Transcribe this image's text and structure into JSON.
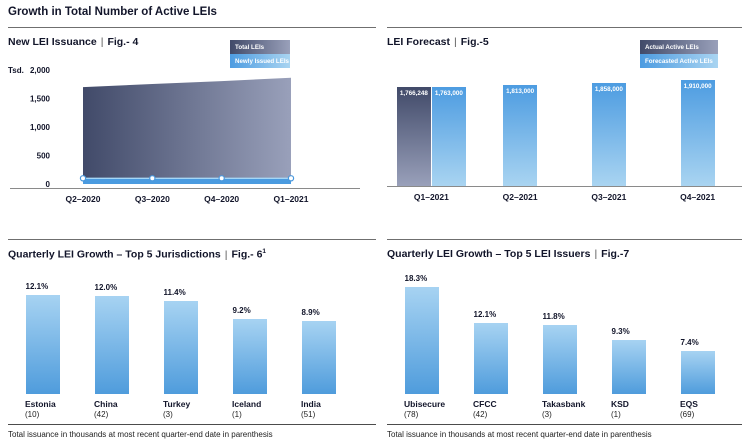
{
  "page": {
    "title": "Growth in Total Number of Active LEIs",
    "title_separator": "|"
  },
  "footnote": "Total issuance in thousands at most recent quarter-end date in parenthesis",
  "colors": {
    "dark_gradient_start": "#414a69",
    "dark_gradient_end": "#99a0ba",
    "forecast_blue_start": "#4d9ce1",
    "forecast_blue_end": "#a9d4f1",
    "growth_blue_top": "#a7d3f2",
    "growth_blue_bottom": "#4f9cdc",
    "newly_issued_strip": "#4a9be0",
    "strip_top_edge": "#a5d6f6",
    "marker_stroke": "#4a98dd",
    "axis_line": "#8a8a8a",
    "text_dark": "#12152a"
  },
  "chart_data": [
    {
      "id": "fig4",
      "type": "area",
      "title": "New LEI Issuance",
      "fig_label": "Fig.- 4",
      "unit_label": "Tsd.",
      "legend": [
        "Total LEIs",
        "Newly Issued LEIs"
      ],
      "categories": [
        "Q2–2020",
        "Q3–2020",
        "Q4–2020",
        "Q1–2021"
      ],
      "ylim": [
        0,
        2000
      ],
      "y_ticks": [
        {
          "value": 2000,
          "label": "2,000"
        },
        {
          "value": 1500,
          "label": "1,500"
        },
        {
          "value": 1000,
          "label": "1,000"
        },
        {
          "value": 500,
          "label": "500"
        },
        {
          "value": 0,
          "label": "0"
        }
      ],
      "series": [
        {
          "name": "Total LEIs",
          "unit": "thousands",
          "estimated": true,
          "values": [
            1700,
            1755,
            1805,
            1865
          ]
        },
        {
          "name": "Newly Issued LEIs",
          "unit": "thousands",
          "estimated": true,
          "values": [
            100,
            100,
            100,
            100
          ]
        }
      ]
    },
    {
      "id": "fig5",
      "type": "bar",
      "title": "LEI Forecast",
      "fig_label": "Fig.-5",
      "legend": [
        "Actual Active LEIs",
        "Forecasted Active LEIs"
      ],
      "categories": [
        "Q1–2021",
        "Q2–2021",
        "Q3–2021",
        "Q4–2021"
      ],
      "series": [
        {
          "name": "Actual Active LEIs",
          "style": "dark",
          "values": [
            1766248,
            null,
            null,
            null
          ],
          "labels": [
            "1,766,248",
            null,
            null,
            null
          ]
        },
        {
          "name": "Forecasted Active LEIs",
          "style": "light",
          "values": [
            1763000,
            1813000,
            1858000,
            1910000
          ],
          "labels": [
            "1,763,000",
            "1,813,000",
            "1,858,000",
            "1,910,000"
          ]
        }
      ]
    },
    {
      "id": "fig6",
      "type": "bar",
      "title": "Quarterly LEI Growth – Top 5 Jurisdictions",
      "fig_label": "Fig.- 6",
      "fig_superscript": "1",
      "categories": [
        "Estonia",
        "China",
        "Turkey",
        "Iceland",
        "India"
      ],
      "category_counts": [
        "(10)",
        "(42)",
        "(3)",
        "(1)",
        "(51)"
      ],
      "values": [
        12.1,
        12.0,
        11.4,
        9.2,
        8.9
      ],
      "value_labels": [
        "12.1%",
        "12.0%",
        "11.4%",
        "9.2%",
        "8.9%"
      ]
    },
    {
      "id": "fig7",
      "type": "bar",
      "title": "Quarterly LEI Growth – Top 5 LEI Issuers",
      "fig_label": "Fig.-7",
      "categories": [
        "Ubisecure",
        "CFCC",
        "Takasbank",
        "KSD",
        "EQS"
      ],
      "category_counts": [
        "(78)",
        "(42)",
        "(3)",
        "(1)",
        "(69)"
      ],
      "values": [
        18.3,
        12.1,
        11.8,
        9.3,
        7.4
      ],
      "value_labels": [
        "18.3%",
        "12.1%",
        "11.8%",
        "9.3%",
        "7.4%"
      ]
    }
  ]
}
